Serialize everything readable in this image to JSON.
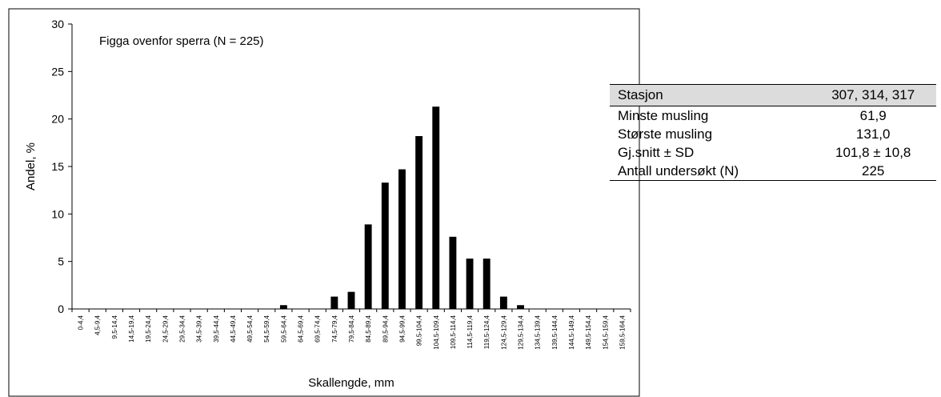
{
  "chart_data": {
    "type": "bar",
    "title": "Figga ovenfor sperra (N = 225)",
    "xlabel": "Skallengde, mm",
    "ylabel": "Andel, %",
    "ylim": [
      0,
      30
    ],
    "yticks": [
      0,
      5,
      10,
      15,
      20,
      25,
      30
    ],
    "categories": [
      "0-4,4",
      "4,5-9,4",
      "9,5-14,4",
      "14,5-19,4",
      "19,5-24,4",
      "24,5-29,4",
      "29,5-34,4",
      "34,5-39,4",
      "39,5-44,4",
      "44,5-49,4",
      "49,5-54,4",
      "54,5-59,4",
      "59,5-64,4",
      "64,5-69,4",
      "69,5-74,4",
      "74,5-79,4",
      "79,5-84,4",
      "84,5-89,4",
      "89,5-94,4",
      "94,5-99,4",
      "99,5-104,4",
      "104,5-109,4",
      "109,5-114,4",
      "114,5-119,4",
      "119,5-124,4",
      "124,5-129,4",
      "129,5-134,4",
      "134,5-139,4",
      "139,5-144,4",
      "144,5-149,4",
      "149,5-154,4",
      "154,5-159,4",
      "159,5-164,4"
    ],
    "values": [
      0,
      0,
      0,
      0,
      0,
      0,
      0,
      0,
      0,
      0,
      0,
      0,
      0.4,
      0,
      0,
      1.3,
      1.8,
      8.9,
      13.3,
      14.7,
      18.2,
      21.3,
      7.6,
      5.3,
      5.3,
      1.3,
      0.4,
      0,
      0,
      0,
      0,
      0,
      0
    ],
    "bar_color": "#000000",
    "grid": false,
    "legend": "none"
  },
  "stats": {
    "header": {
      "label": "Stasjon",
      "value": "307, 314, 317"
    },
    "rows": [
      {
        "label": "Minste musling",
        "value": "61,9"
      },
      {
        "label": "Største musling",
        "value": "131,0"
      },
      {
        "label": "Gj.snitt ± SD",
        "value": "101,8 ± 10,8"
      },
      {
        "label": "Antall undersøkt (N)",
        "value": "225"
      }
    ]
  }
}
